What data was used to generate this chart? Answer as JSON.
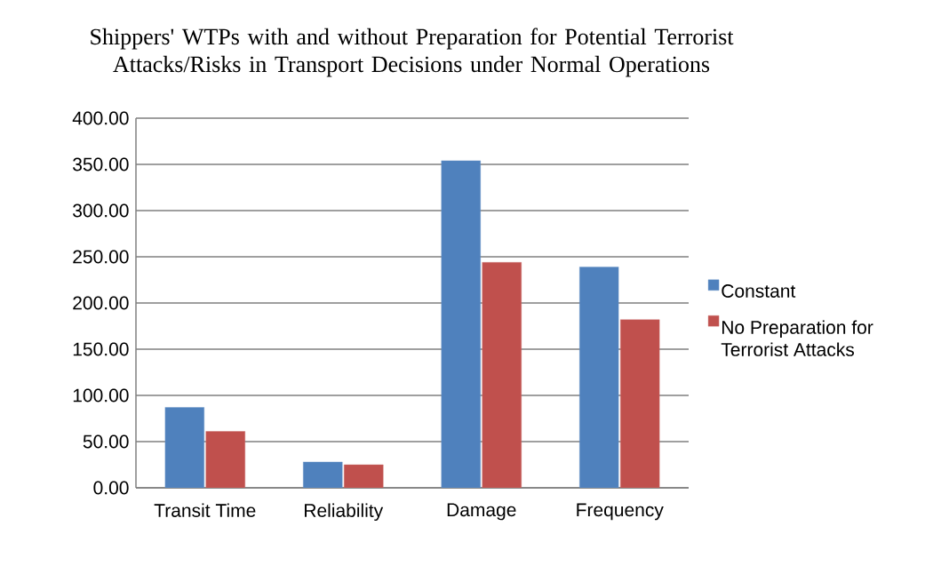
{
  "chart_data": {
    "type": "bar",
    "title": "Shippers' WTPs with and without Preparation for Potential Terrorist Attacks/Risks in Transport Decisions under Normal Operations",
    "categories": [
      "Transit Time",
      "Reliability",
      "Damage",
      "Frequency"
    ],
    "series": [
      {
        "name": "Constant",
        "color": "#4f81bd",
        "values": [
          87,
          28,
          354,
          239
        ]
      },
      {
        "name": "No Preparation for Terrorist Attacks",
        "color": "#c0504d",
        "values": [
          61,
          25,
          244,
          182
        ]
      }
    ],
    "ylim": [
      0,
      400
    ],
    "yticks": [
      {
        "value": 0,
        "label": "0.00"
      },
      {
        "value": 50,
        "label": "50.00"
      },
      {
        "value": 100,
        "label": "100.00"
      },
      {
        "value": 150,
        "label": "150.00"
      },
      {
        "value": 200,
        "label": "200.00"
      },
      {
        "value": 250,
        "label": "250.00"
      },
      {
        "value": 300,
        "label": "300.00"
      },
      {
        "value": 350,
        "label": "350.00"
      },
      {
        "value": 400,
        "label": "400.00"
      }
    ],
    "grid": "y",
    "legend": "right"
  }
}
